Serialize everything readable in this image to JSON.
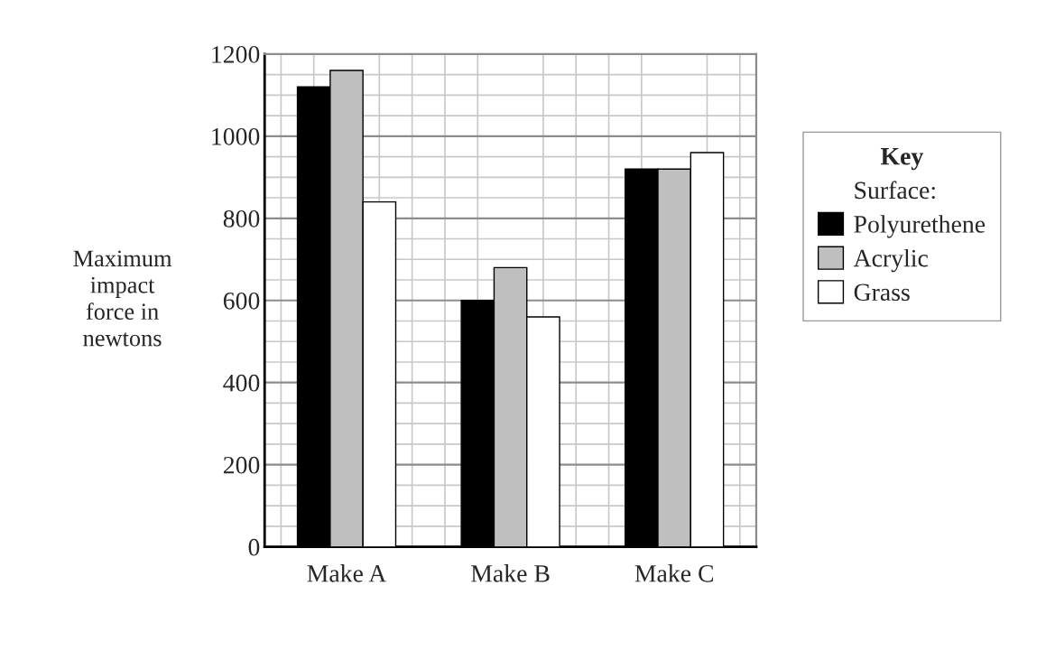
{
  "chart_data": {
    "type": "bar",
    "ylabel": "Maximum\nimpact\nforce in\nnewtons",
    "legend_title": "Key",
    "annotations": [
      "Surface:"
    ],
    "categories": [
      "Make A",
      "Make B",
      "Make C"
    ],
    "series": [
      {
        "name": "Polyurethene",
        "color": "#000000",
        "values": [
          1120,
          600,
          920
        ]
      },
      {
        "name": "Acrylic",
        "color": "#bfbfbf",
        "values": [
          1160,
          680,
          920
        ]
      },
      {
        "name": "Grass",
        "color": "#ffffff",
        "values": [
          840,
          560,
          960
        ]
      }
    ],
    "ylim": [
      0,
      1200
    ],
    "yticks": [
      0,
      200,
      400,
      600,
      800,
      1000,
      1200
    ],
    "grid": true,
    "legend": "right"
  }
}
